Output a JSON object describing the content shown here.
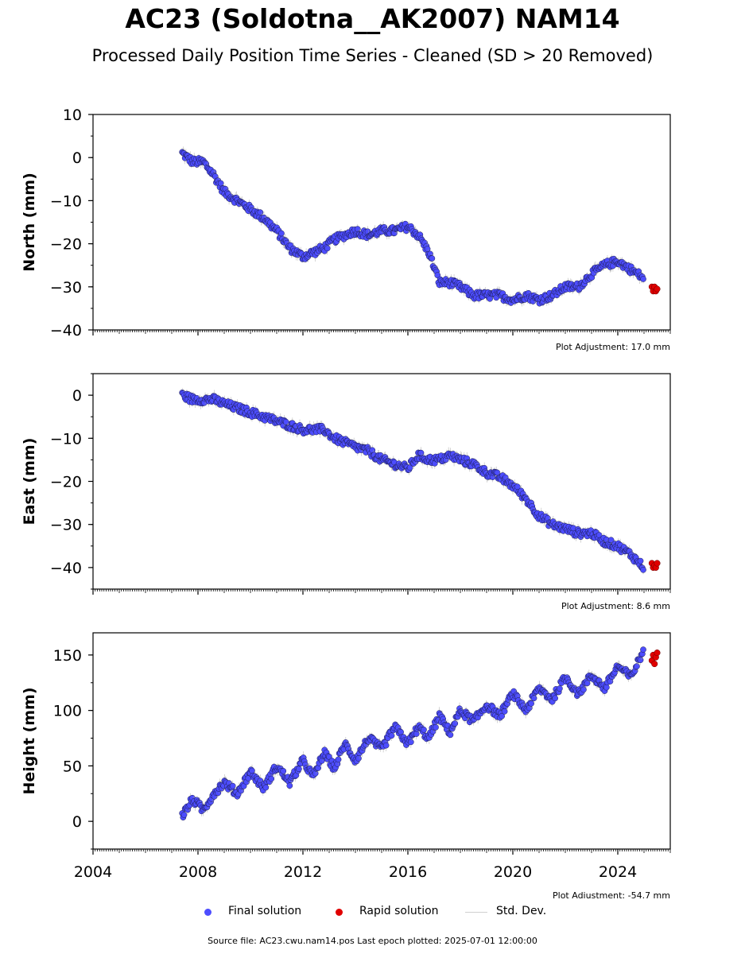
{
  "title": "AC23 (Soldotna__AK2007) NAM14",
  "subtitle": "Processed Daily Position Time Series - Cleaned (SD > 20 Removed)",
  "legend": {
    "final": "Final solution",
    "rapid": "Rapid solution",
    "std": "Std. Dev."
  },
  "footer": "Source file: AC23.cwu.nam14.pos  Last epoch plotted: 2025-07-01 12:00:00",
  "colors": {
    "final": "#4d4dff",
    "rapid": "#e00000",
    "std": "#c8c8c8",
    "edge": "#1a1a4d"
  },
  "chart_data": [
    {
      "type": "scatter",
      "name": "north",
      "ylabel": "North (mm)",
      "adjustment_text": "Plot Adjustment: 17.0 mm",
      "xlim": [
        2004,
        2026
      ],
      "ylim": [
        -40,
        10
      ],
      "yticks": [
        10,
        0,
        -10,
        -20,
        -30,
        -40
      ],
      "yticklabels": [
        "10",
        "0",
        "−10",
        "−20",
        "−30",
        "−40"
      ],
      "final_series": {
        "x": [
          2007.4,
          2007.8,
          2008.2,
          2008.6,
          2009.0,
          2009.5,
          2010.0,
          2010.5,
          2011.0,
          2011.5,
          2012.0,
          2012.4,
          2012.8,
          2013.2,
          2013.6,
          2014.0,
          2014.5,
          2015.0,
          2015.5,
          2016.0,
          2016.4,
          2016.8,
          2017.2,
          2017.6,
          2018.0,
          2018.5,
          2019.0,
          2019.5,
          2020.0,
          2020.5,
          2021.0,
          2021.5,
          2022.0,
          2022.5,
          2023.0,
          2023.5,
          2024.0,
          2024.5,
          2025.0
        ],
        "y": [
          1,
          -1,
          -1,
          -4,
          -8,
          -10,
          -12,
          -14,
          -17,
          -21,
          -23,
          -22,
          -21,
          -19,
          -18,
          -17,
          -18,
          -17,
          -17,
          -16,
          -18,
          -22,
          -29,
          -29,
          -30,
          -32,
          -32,
          -32,
          -33,
          -32,
          -33,
          -32,
          -30,
          -30,
          -27,
          -25,
          -24,
          -26,
          -28
        ]
      },
      "rapid_series": {
        "x": [
          2025.3,
          2025.35,
          2025.4,
          2025.45,
          2025.5
        ],
        "y": [
          -30,
          -31,
          -30,
          -31,
          -30.5
        ]
      }
    },
    {
      "type": "scatter",
      "name": "east",
      "ylabel": "East (mm)",
      "adjustment_text": "Plot Adjustment: 8.6 mm",
      "xlim": [
        2004,
        2026
      ],
      "ylim": [
        -45,
        5
      ],
      "yticks": [
        0,
        -10,
        -20,
        -30,
        -40
      ],
      "yticklabels": [
        "0",
        "−10",
        "−20",
        "−30",
        "−40"
      ],
      "final_series": {
        "x": [
          2007.4,
          2007.8,
          2008.2,
          2008.6,
          2009.0,
          2009.5,
          2010.0,
          2010.5,
          2011.0,
          2011.5,
          2012.0,
          2012.4,
          2012.8,
          2013.2,
          2013.6,
          2014.0,
          2014.5,
          2015.0,
          2015.5,
          2016.0,
          2016.4,
          2016.8,
          2017.2,
          2017.6,
          2018.0,
          2018.5,
          2019.0,
          2019.5,
          2020.0,
          2020.5,
          2021.0,
          2021.5,
          2022.0,
          2022.5,
          2023.0,
          2023.5,
          2024.0,
          2024.5,
          2025.0
        ],
        "y": [
          0,
          -1,
          -1,
          -1,
          -2,
          -3,
          -4,
          -5,
          -6,
          -7,
          -8,
          -8,
          -8,
          -10,
          -11,
          -12,
          -13,
          -15,
          -16,
          -17,
          -14,
          -15,
          -15,
          -14,
          -15,
          -16,
          -18,
          -19,
          -21,
          -24,
          -28,
          -30,
          -31,
          -32,
          -32,
          -34,
          -35,
          -37,
          -40
        ]
      },
      "rapid_series": {
        "x": [
          2025.3,
          2025.35,
          2025.4,
          2025.45,
          2025.5
        ],
        "y": [
          -39,
          -40,
          -39.5,
          -40,
          -39
        ]
      }
    },
    {
      "type": "scatter",
      "name": "height",
      "ylabel": "Height (mm)",
      "adjustment_text": "Plot Adjustment: -54.7 mm",
      "xlim": [
        2004,
        2026
      ],
      "ylim": [
        -25,
        170
      ],
      "yticks": [
        150,
        100,
        50,
        0
      ],
      "yticklabels": [
        "150",
        "100",
        "50",
        "0"
      ],
      "xticks": [
        2004,
        2008,
        2012,
        2016,
        2020,
        2024
      ],
      "xticklabels": [
        "2004",
        "2008",
        "2012",
        "2016",
        "2020",
        "2024"
      ],
      "final_series": {
        "x": [
          2007.4,
          2007.8,
          2008.2,
          2008.6,
          2009.0,
          2009.5,
          2010.0,
          2010.5,
          2011.0,
          2011.5,
          2012.0,
          2012.4,
          2012.8,
          2013.2,
          2013.6,
          2014.0,
          2014.5,
          2015.0,
          2015.5,
          2016.0,
          2016.4,
          2016.8,
          2017.2,
          2017.6,
          2018.0,
          2018.5,
          2019.0,
          2019.5,
          2020.0,
          2020.5,
          2021.0,
          2021.5,
          2022.0,
          2022.5,
          2023.0,
          2023.5,
          2024.0,
          2024.5,
          2025.0
        ],
        "y": [
          5,
          20,
          10,
          25,
          35,
          25,
          45,
          30,
          50,
          35,
          55,
          40,
          62,
          48,
          70,
          55,
          75,
          65,
          85,
          70,
          85,
          75,
          95,
          80,
          100,
          90,
          105,
          95,
          115,
          100,
          120,
          110,
          130,
          115,
          132,
          120,
          140,
          130,
          155
        ]
      },
      "rapid_series": {
        "x": [
          2025.3,
          2025.35,
          2025.4,
          2025.45,
          2025.5
        ],
        "y": [
          145,
          150,
          142,
          148,
          152
        ]
      }
    }
  ]
}
